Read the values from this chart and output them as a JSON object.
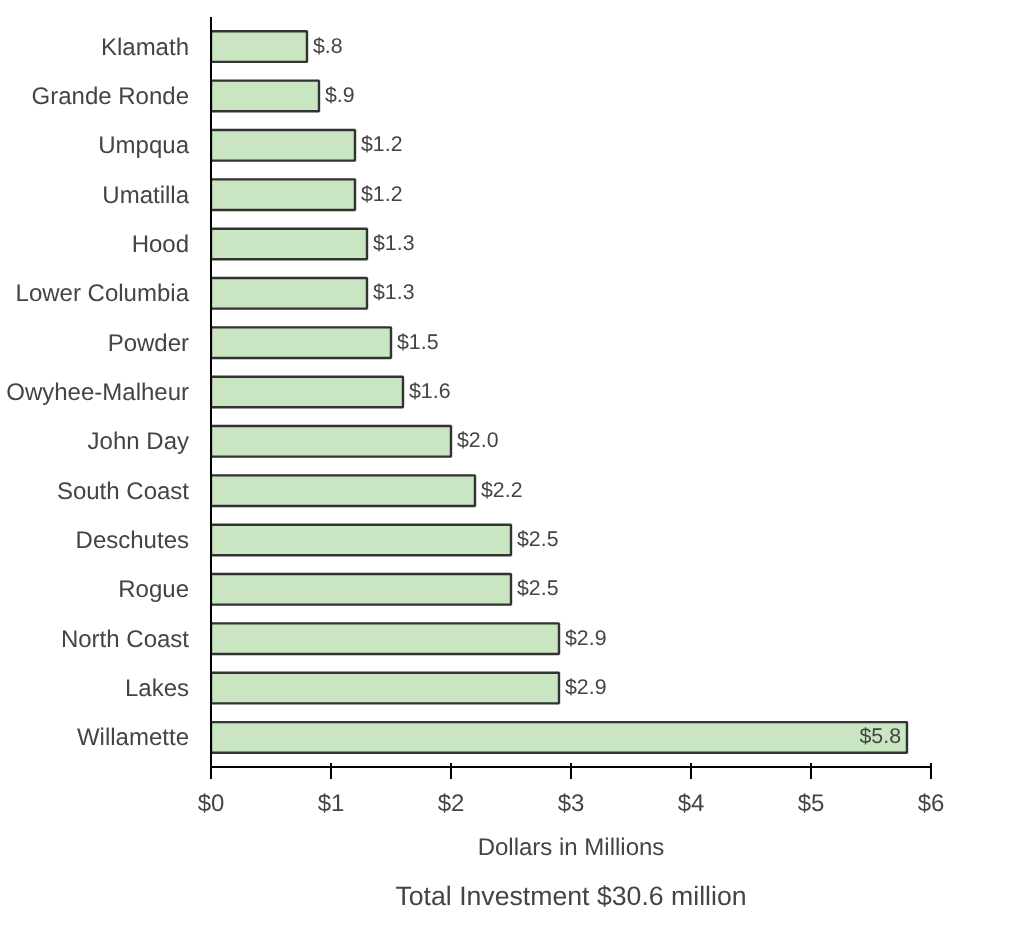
{
  "chart_data": {
    "type": "bar",
    "orientation": "horizontal",
    "xlabel": "Dollars in Millions",
    "annotations": [
      "Total Investment $30.6 million"
    ],
    "categories": [
      "Klamath",
      "Grande Ronde",
      "Umpqua",
      "Umatilla",
      "Hood",
      "Lower Columbia",
      "Powder",
      "Owyhee-Malheur",
      "John Day",
      "South Coast",
      "Deschutes",
      "Rogue",
      "North Coast",
      "Lakes",
      "Willamette"
    ],
    "values": [
      0.8,
      0.9,
      1.2,
      1.2,
      1.3,
      1.3,
      1.5,
      1.6,
      2.0,
      2.2,
      2.5,
      2.5,
      2.9,
      2.9,
      5.8
    ],
    "value_labels": [
      "$.8",
      "$.9",
      "$1.2",
      "$1.2",
      "$1.3",
      "$1.3",
      "$1.5",
      "$1.6",
      "$2.0",
      "$2.2",
      "$2.5",
      "$2.5",
      "$2.9",
      "$2.9",
      "$5.8"
    ],
    "color": "#c9e5c1",
    "xlim": [
      0,
      6
    ],
    "xticks": [
      {
        "value": 0,
        "label": "$0"
      },
      {
        "value": 1,
        "label": "$1"
      },
      {
        "value": 2,
        "label": "$2"
      },
      {
        "value": 3,
        "label": "$3"
      },
      {
        "value": 4,
        "label": "$4"
      },
      {
        "value": 5,
        "label": "$5"
      },
      {
        "value": 6,
        "label": "$6"
      }
    ],
    "grid": false
  }
}
